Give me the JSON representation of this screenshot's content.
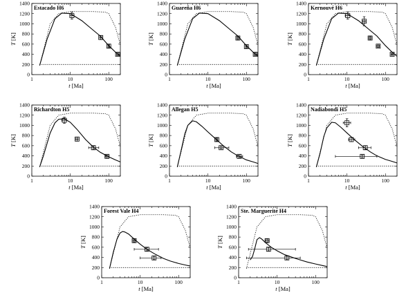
{
  "chart_data": [
    {
      "type": "line",
      "title": "Estacado H6",
      "xlabel": "t [Ma]",
      "ylabel": "T [K]",
      "xscale": "log",
      "xlim": [
        1,
        200
      ],
      "ylim": [
        0,
        1400
      ],
      "xticks": [
        1,
        10,
        100
      ],
      "yticks": [
        0,
        200,
        400,
        600,
        800,
        1000,
        1200,
        1400
      ],
      "series": [
        {
          "style": "solid",
          "x": [
            1.6,
            2.5,
            4,
            6,
            10,
            20,
            40,
            60,
            100,
            150,
            200
          ],
          "y": [
            180,
            700,
            1100,
            1210,
            1200,
            1060,
            870,
            760,
            570,
            440,
            360
          ]
        },
        {
          "style": "dotted",
          "x": [
            1.6,
            3,
            5,
            10,
            20,
            40,
            80,
            100,
            150,
            200
          ],
          "y": [
            180,
            1000,
            1200,
            1240,
            1240,
            1240,
            1230,
            1200,
            930,
            580
          ]
        },
        {
          "style": "dotted",
          "x": [
            1.6,
            200
          ],
          "y": [
            200,
            200
          ]
        }
      ],
      "points": [
        {
          "x": 11,
          "y": 1160,
          "xerr": [
            9.8,
            12.5
          ],
          "yerr": [
            1090,
            1230
          ]
        },
        {
          "x": 62,
          "y": 730,
          "xerr": [
            58,
            66
          ],
          "yerr": [
            690,
            770
          ]
        },
        {
          "x": 100,
          "y": 560,
          "xerr": [
            95,
            105
          ],
          "yerr": [
            530,
            590
          ]
        },
        {
          "x": 170,
          "y": 400,
          "xerr": [
            160,
            180
          ],
          "yerr": [
            375,
            425
          ]
        }
      ]
    },
    {
      "type": "line",
      "title": "Guareña H6",
      "xlabel": "t [Ma]",
      "ylabel": "T [K]",
      "xscale": "log",
      "xlim": [
        1,
        200
      ],
      "ylim": [
        0,
        1400
      ],
      "xticks": [
        1,
        10,
        100
      ],
      "yticks": [
        0,
        200,
        400,
        600,
        800,
        1000,
        1200,
        1400
      ],
      "series": [
        {
          "style": "solid",
          "x": [
            1.6,
            2.5,
            4,
            6,
            10,
            20,
            40,
            60,
            100,
            150,
            200
          ],
          "y": [
            180,
            700,
            1100,
            1210,
            1200,
            1060,
            870,
            760,
            570,
            440,
            360
          ]
        },
        {
          "style": "dotted",
          "x": [
            1.6,
            3,
            5,
            10,
            20,
            40,
            80,
            100,
            150,
            200
          ],
          "y": [
            180,
            1000,
            1200,
            1240,
            1240,
            1240,
            1230,
            1200,
            930,
            580
          ]
        },
        {
          "style": "dotted",
          "x": [
            1.6,
            200
          ],
          "y": [
            200,
            200
          ]
        }
      ],
      "points": [
        {
          "x": 60,
          "y": 720,
          "xerr": [
            56,
            64
          ],
          "yerr": [
            690,
            750
          ]
        },
        {
          "x": 100,
          "y": 550,
          "xerr": [
            95,
            105
          ],
          "yerr": [
            525,
            575
          ]
        },
        {
          "x": 170,
          "y": 400,
          "xerr": [
            160,
            180
          ],
          "yerr": [
            375,
            425
          ]
        }
      ]
    },
    {
      "type": "line",
      "title": "Kernouvé H6",
      "xlabel": "t [Ma]",
      "ylabel": "T [K]",
      "xscale": "log",
      "xlim": [
        1,
        200
      ],
      "ylim": [
        0,
        1400
      ],
      "xticks": [
        1,
        10,
        100
      ],
      "yticks": [
        0,
        200,
        400,
        600,
        800,
        1000,
        1200,
        1400
      ],
      "series": [
        {
          "style": "solid",
          "x": [
            1.6,
            2.5,
            4,
            6,
            10,
            20,
            40,
            60,
            100,
            150,
            200
          ],
          "y": [
            180,
            700,
            1100,
            1210,
            1200,
            1060,
            870,
            760,
            570,
            440,
            360
          ]
        },
        {
          "style": "dotted",
          "x": [
            1.6,
            3,
            5,
            10,
            20,
            40,
            80,
            100,
            150,
            200
          ],
          "y": [
            180,
            1000,
            1200,
            1240,
            1240,
            1240,
            1230,
            1200,
            930,
            580
          ]
        },
        {
          "style": "dotted",
          "x": [
            1.6,
            200
          ],
          "y": [
            200,
            200
          ]
        }
      ],
      "points": [
        {
          "x": 10.5,
          "y": 1160,
          "xerr": [
            9,
            12
          ],
          "yerr": [
            1090,
            1230
          ]
        },
        {
          "x": 28,
          "y": 1050,
          "xerr": [
            26,
            30
          ],
          "yerr": [
            960,
            1140
          ]
        },
        {
          "x": 40,
          "y": 720,
          "xerr": [
            37,
            43
          ],
          "yerr": [
            690,
            750
          ]
        },
        {
          "x": 65,
          "y": 560,
          "xerr": [
            60,
            70
          ],
          "yerr": [
            535,
            585
          ]
        },
        {
          "x": 150,
          "y": 400,
          "xerr": [
            140,
            160
          ],
          "yerr": [
            380,
            420
          ]
        }
      ]
    },
    {
      "type": "line",
      "title": "Richardton H5",
      "xlabel": "t [Ma]",
      "ylabel": "T [K]",
      "xscale": "log",
      "xlim": [
        1,
        200
      ],
      "ylim": [
        0,
        1400
      ],
      "xticks": [
        1,
        10,
        100
      ],
      "yticks": [
        0,
        200,
        400,
        600,
        800,
        1000,
        1200,
        1400
      ],
      "series": [
        {
          "style": "solid",
          "x": [
            1.6,
            2,
            3,
            4,
            5,
            7,
            10,
            15,
            25,
            40,
            60,
            100,
            150,
            200
          ],
          "y": [
            180,
            400,
            850,
            1050,
            1120,
            1130,
            1060,
            920,
            720,
            570,
            470,
            380,
            320,
            280
          ]
        },
        {
          "style": "dotted",
          "x": [
            1.6,
            3,
            5,
            10,
            20,
            40,
            80,
            100,
            150,
            200
          ],
          "y": [
            180,
            1000,
            1200,
            1240,
            1240,
            1240,
            1230,
            1200,
            930,
            580
          ]
        },
        {
          "style": "dotted",
          "x": [
            1.6,
            200
          ],
          "y": [
            200,
            200
          ]
        }
      ],
      "points": [
        {
          "x": 7,
          "y": 1100,
          "xerr": [
            6,
            8
          ],
          "yerr": [
            1040,
            1160
          ]
        },
        {
          "x": 15,
          "y": 730,
          "xerr": [
            14,
            16
          ],
          "yerr": [
            690,
            770
          ]
        },
        {
          "x": 40,
          "y": 560,
          "xerr": [
            30,
            55
          ],
          "yerr": [
            530,
            590
          ]
        },
        {
          "x": 90,
          "y": 390,
          "xerr": [
            82,
            100
          ],
          "yerr": [
            365,
            415
          ]
        }
      ]
    },
    {
      "type": "line",
      "title": "Allegan H5",
      "xlabel": "t [Ma]",
      "ylabel": "T [K]",
      "xscale": "log",
      "xlim": [
        1,
        200
      ],
      "ylim": [
        0,
        1400
      ],
      "xticks": [
        1,
        10,
        100
      ],
      "yticks": [
        0,
        200,
        400,
        600,
        800,
        1000,
        1200,
        1400
      ],
      "series": [
        {
          "style": "solid",
          "x": [
            1.6,
            2,
            2.5,
            3,
            4,
            5,
            7,
            10,
            15,
            25,
            40,
            60,
            100,
            150,
            200
          ],
          "y": [
            180,
            500,
            830,
            1000,
            1090,
            1070,
            980,
            870,
            750,
            600,
            480,
            400,
            320,
            280,
            250
          ]
        },
        {
          "style": "dotted",
          "x": [
            1.6,
            3,
            5,
            10,
            20,
            40,
            80,
            100,
            150,
            200
          ],
          "y": [
            180,
            1000,
            1200,
            1240,
            1240,
            1240,
            1230,
            1200,
            930,
            580
          ]
        },
        {
          "style": "dotted",
          "x": [
            1.6,
            200
          ],
          "y": [
            200,
            200
          ]
        }
      ],
      "points": [
        {
          "x": 17,
          "y": 720,
          "xerr": [
            16,
            18
          ],
          "yerr": [
            690,
            750
          ]
        },
        {
          "x": 22,
          "y": 560,
          "xerr": [
            15,
            35
          ],
          "yerr": [
            535,
            585
          ]
        },
        {
          "x": 65,
          "y": 390,
          "xerr": [
            55,
            80
          ],
          "yerr": [
            365,
            415
          ]
        }
      ]
    },
    {
      "type": "line",
      "title": "Nadiabondi H5",
      "xlabel": "t [Ma]",
      "ylabel": "T [K]",
      "xscale": "log",
      "xlim": [
        1,
        200
      ],
      "ylim": [
        0,
        1400
      ],
      "xticks": [
        1,
        10,
        100
      ],
      "yticks": [
        0,
        200,
        400,
        600,
        800,
        1000,
        1200,
        1400
      ],
      "series": [
        {
          "style": "solid",
          "x": [
            1.6,
            2,
            2.5,
            3,
            4,
            5,
            7,
            10,
            15,
            25,
            40,
            60,
            100,
            150,
            200
          ],
          "y": [
            180,
            450,
            780,
            950,
            1060,
            1050,
            960,
            850,
            730,
            590,
            480,
            400,
            330,
            290,
            260
          ]
        },
        {
          "style": "dotted",
          "x": [
            1.6,
            3,
            5,
            10,
            20,
            40,
            80,
            100,
            150,
            200
          ],
          "y": [
            180,
            1000,
            1200,
            1240,
            1240,
            1240,
            1230,
            1200,
            930,
            580
          ]
        },
        {
          "style": "dotted",
          "x": [
            1.6,
            200
          ],
          "y": [
            200,
            200
          ]
        }
      ],
      "points": [
        {
          "x": 10,
          "y": 1050,
          "xerr": [
            8,
            12.5
          ],
          "yerr": [
            970,
            1130
          ]
        },
        {
          "x": 13,
          "y": 720,
          "xerr": [
            11,
            16
          ],
          "yerr": [
            680,
            760
          ]
        },
        {
          "x": 30,
          "y": 560,
          "xerr": [
            20,
            42
          ],
          "yerr": [
            525,
            595
          ]
        },
        {
          "x": 25,
          "y": 390,
          "xerr": [
            5,
            60
          ],
          "yerr": [
            365,
            415
          ]
        }
      ]
    },
    {
      "type": "line",
      "title": "Forest Vale H4",
      "xlabel": "t [Ma]",
      "ylabel": "T [K]",
      "xscale": "log",
      "xlim": [
        1,
        200
      ],
      "ylim": [
        0,
        1400
      ],
      "xticks": [
        1,
        10,
        100
      ],
      "yticks": [
        0,
        200,
        400,
        600,
        800,
        1000,
        1200,
        1400
      ],
      "series": [
        {
          "style": "solid",
          "x": [
            1.6,
            2,
            2.5,
            3,
            3.5,
            4,
            5,
            7,
            10,
            15,
            25,
            40,
            60,
            100,
            150,
            200
          ],
          "y": [
            180,
            500,
            760,
            880,
            910,
            900,
            860,
            760,
            660,
            560,
            460,
            380,
            330,
            280,
            250,
            230
          ]
        },
        {
          "style": "dotted",
          "x": [
            1.6,
            3,
            5,
            10,
            20,
            40,
            80,
            100,
            150,
            200
          ],
          "y": [
            180,
            1000,
            1200,
            1240,
            1240,
            1240,
            1230,
            1200,
            930,
            580
          ]
        },
        {
          "style": "dotted",
          "x": [
            1.6,
            200
          ],
          "y": [
            200,
            200
          ]
        }
      ],
      "points": [
        {
          "x": 7,
          "y": 730,
          "xerr": [
            6.5,
            7.5
          ],
          "yerr": [
            700,
            760
          ]
        },
        {
          "x": 15,
          "y": 560,
          "xerr": [
            7,
            30
          ],
          "yerr": [
            530,
            590
          ]
        },
        {
          "x": 23,
          "y": 390,
          "xerr": [
            10,
            35
          ],
          "yerr": [
            360,
            420
          ]
        }
      ]
    },
    {
      "type": "line",
      "title": "Ste. Marguerite H4",
      "xlabel": "t [Ma]",
      "ylabel": "T [K]",
      "xscale": "log",
      "xlim": [
        1,
        200
      ],
      "ylim": [
        0,
        1400
      ],
      "xticks": [
        1,
        10,
        100
      ],
      "yticks": [
        0,
        200,
        400,
        600,
        800,
        1000,
        1200,
        1400
      ],
      "series": [
        {
          "style": "solid",
          "x": [
            2,
            2.3,
            2.6,
            3,
            3.5,
            4,
            5,
            7,
            10,
            15,
            25,
            40,
            60,
            100,
            150,
            200
          ],
          "y": [
            350,
            420,
            560,
            750,
            790,
            760,
            690,
            600,
            530,
            460,
            400,
            350,
            310,
            270,
            240,
            220
          ]
        },
        {
          "style": "dotted",
          "x": [
            1.6,
            3,
            5,
            10,
            20,
            40,
            80,
            100,
            150,
            200
          ],
          "y": [
            180,
            1000,
            1200,
            1240,
            1240,
            1240,
            1230,
            1200,
            930,
            580
          ]
        },
        {
          "style": "dotted",
          "x": [
            1.6,
            200
          ],
          "y": [
            200,
            200
          ]
        }
      ],
      "points": [
        {
          "x": 5.5,
          "y": 730,
          "xerr": [
            5,
            6
          ],
          "yerr": [
            700,
            760
          ]
        },
        {
          "x": 6,
          "y": 560,
          "xerr": [
            1.8,
            30
          ],
          "yerr": [
            530,
            590
          ]
        },
        {
          "x": 18,
          "y": 390,
          "xerr": [
            1.6,
            40
          ],
          "yerr": [
            360,
            420
          ]
        }
      ]
    }
  ]
}
